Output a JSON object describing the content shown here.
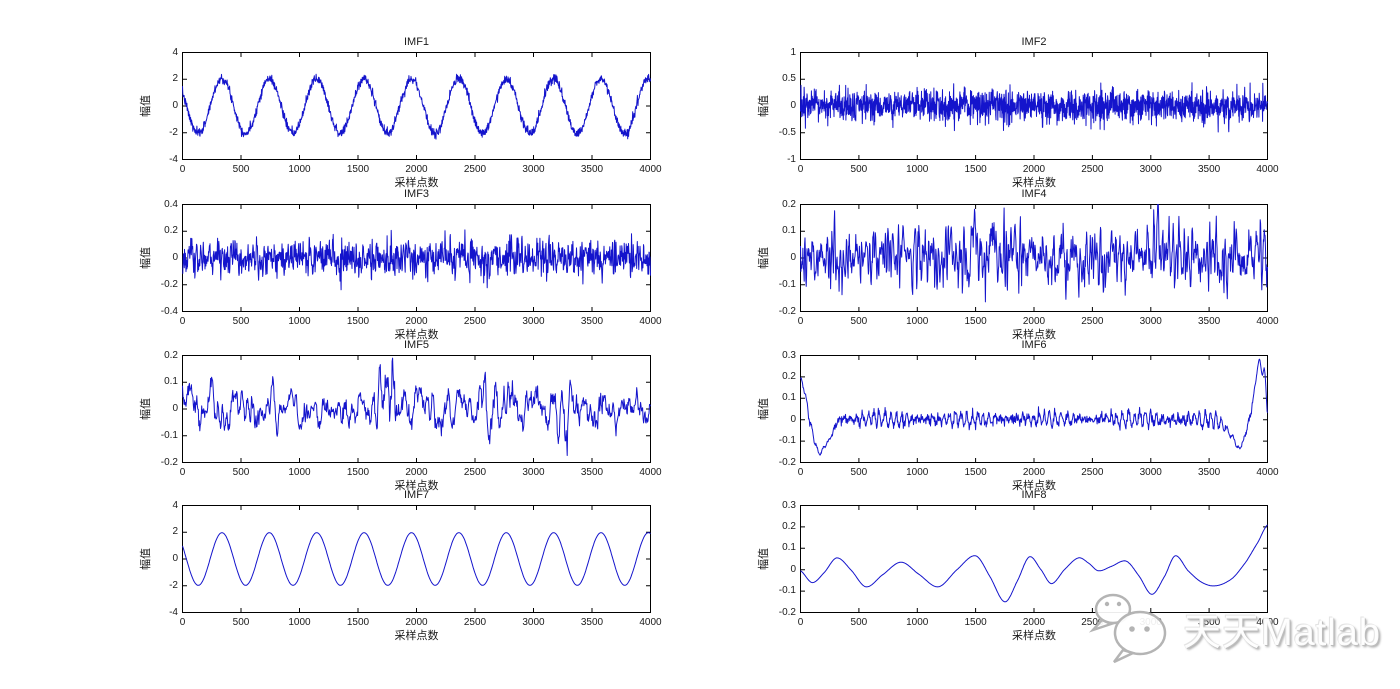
{
  "figure": {
    "background": "#ffffff",
    "trace_color": "#1414cc",
    "axis_color": "#000000",
    "text_color": "#1a1a1a"
  },
  "axes_common": {
    "xlabel": "采样点数",
    "ylabel": "幅值",
    "xlim": [
      0,
      4000
    ],
    "xticks": [
      0,
      500,
      1000,
      1500,
      2000,
      2500,
      3000,
      3500,
      4000
    ],
    "xtick_labels": [
      "0",
      "500",
      "1000",
      "1500",
      "2000",
      "2500",
      "3000",
      "3500",
      "4000"
    ],
    "grid": false,
    "box": true
  },
  "chart_data": [
    {
      "id": "imf1",
      "type": "line",
      "title": "IMF1",
      "xlabel": "采样点数",
      "ylabel": "幅值",
      "xlim": [
        0,
        4000
      ],
      "ylim": [
        -4,
        4
      ],
      "yticks": [
        -4,
        -2,
        0,
        2,
        4
      ],
      "ytick_labels": [
        "-4",
        "-2",
        "0",
        "2",
        "4"
      ],
      "signal": {
        "kind": "noisy_sine",
        "amplitude": 2.05,
        "period": 405,
        "phase_offset": 169,
        "noise_sd": 0.17,
        "points": 1500,
        "seed": 7
      }
    },
    {
      "id": "imf2",
      "type": "line",
      "title": "IMF2",
      "xlabel": "采样点数",
      "ylabel": "幅值",
      "xlim": [
        0,
        4000
      ],
      "ylim": [
        -1,
        1
      ],
      "yticks": [
        -1,
        -0.5,
        0,
        0.5,
        1
      ],
      "ytick_labels": [
        "-1",
        "-0.5",
        "0",
        "0.5",
        "1"
      ],
      "signal": {
        "kind": "noise",
        "sd": 0.15,
        "smooth": 1,
        "points": 1800,
        "seed": 13
      }
    },
    {
      "id": "imf3",
      "type": "line",
      "title": "IMF3",
      "xlabel": "采样点数",
      "ylabel": "幅值",
      "xlim": [
        0,
        4000
      ],
      "ylim": [
        -0.4,
        0.4
      ],
      "yticks": [
        -0.4,
        -0.2,
        0,
        0.2,
        0.4
      ],
      "ytick_labels": [
        "-0.4",
        "-0.2",
        "0",
        "0.2",
        "0.4"
      ],
      "signal": {
        "kind": "noise",
        "sd": 0.068,
        "smooth": 2,
        "points": 1600,
        "seed": 21
      }
    },
    {
      "id": "imf4",
      "type": "line",
      "title": "IMF4",
      "xlabel": "采样点数",
      "ylabel": "幅值",
      "xlim": [
        0,
        4000
      ],
      "ylim": [
        -0.2,
        0.2
      ],
      "yticks": [
        -0.2,
        -0.1,
        0,
        0.1,
        0.2
      ],
      "ytick_labels": [
        "-0.2",
        "-0.1",
        "0",
        "0.1",
        "0.2"
      ],
      "signal": {
        "kind": "noise",
        "sd": 0.058,
        "smooth": 3,
        "points": 1150,
        "seed": 34
      }
    },
    {
      "id": "imf5",
      "type": "line",
      "title": "IMF5",
      "xlabel": "采样点数",
      "ylabel": "幅值",
      "xlim": [
        0,
        4000
      ],
      "ylim": [
        -0.2,
        0.2
      ],
      "yticks": [
        -0.2,
        -0.1,
        0,
        0.1,
        0.2
      ],
      "ytick_labels": [
        "-0.2",
        "-0.1",
        "0",
        "0.1",
        "0.2"
      ],
      "signal": {
        "kind": "noise",
        "sd": 0.04,
        "smooth": 6,
        "points": 950,
        "seed": 55,
        "bursts": [
          {
            "center": 1760,
            "width": 90,
            "gain": 1.9
          },
          {
            "center": 2700,
            "width": 150,
            "gain": 0.7
          },
          {
            "center": 3250,
            "width": 120,
            "gain": 0.6
          }
        ]
      }
    },
    {
      "id": "imf6",
      "type": "line",
      "title": "IMF6",
      "xlabel": "采样点数",
      "ylabel": "幅值",
      "xlim": [
        0,
        4000
      ],
      "ylim": [
        -0.2,
        0.3
      ],
      "yticks": [
        -0.2,
        -0.1,
        0,
        0.1,
        0.2,
        0.3
      ],
      "ytick_labels": [
        "-0.2",
        "-0.1",
        "0",
        "0.1",
        "0.2",
        "0.3"
      ],
      "signal": {
        "kind": "osc_noise_edges",
        "osc_amp": 0.03,
        "osc_period": 47,
        "noise_sd": 0.012,
        "points": 1100,
        "seed": 89,
        "edges": [
          [
            0,
            0.19
          ],
          [
            40,
            0.12
          ],
          [
            80,
            0.0
          ],
          [
            120,
            -0.1
          ],
          [
            160,
            -0.155
          ],
          [
            200,
            -0.13
          ],
          [
            250,
            -0.09
          ],
          [
            300,
            -0.03
          ],
          [
            340,
            0
          ],
          [
            3560,
            0
          ],
          [
            3620,
            -0.03
          ],
          [
            3700,
            -0.08
          ],
          [
            3760,
            -0.135
          ],
          [
            3820,
            -0.05
          ],
          [
            3860,
            0.04
          ],
          [
            3900,
            0.18
          ],
          [
            3930,
            0.28
          ],
          [
            3955,
            0.21
          ],
          [
            3975,
            0.23
          ],
          [
            4000,
            0.03
          ]
        ]
      }
    },
    {
      "id": "imf7",
      "type": "line",
      "title": "IMF7",
      "xlabel": "采样点数",
      "ylabel": "幅值",
      "xlim": [
        0,
        4000
      ],
      "ylim": [
        -4,
        4
      ],
      "yticks": [
        -4,
        -2,
        0,
        2,
        4
      ],
      "ytick_labels": [
        "-4",
        "-2",
        "0",
        "2",
        "4"
      ],
      "signal": {
        "kind": "sine",
        "amplitude": 1.97,
        "period": 405,
        "phase_offset": 169,
        "points": 600,
        "seed": 1
      }
    },
    {
      "id": "imf8",
      "type": "line",
      "title": "IMF8",
      "xlabel": "采样点数",
      "ylabel": "幅值",
      "xlim": [
        0,
        4000
      ],
      "ylim": [
        -0.2,
        0.3
      ],
      "yticks": [
        -0.2,
        -0.1,
        0,
        0.1,
        0.2,
        0.3
      ],
      "ytick_labels": [
        "-0.2",
        "-0.1",
        "0",
        "0.1",
        "0.2",
        "0.3"
      ],
      "signal": {
        "kind": "keypoints",
        "points": 700,
        "seed": 2,
        "keypoints": [
          [
            0,
            -0.005
          ],
          [
            100,
            -0.06
          ],
          [
            200,
            -0.015
          ],
          [
            310,
            0.055
          ],
          [
            430,
            0.0
          ],
          [
            560,
            -0.08
          ],
          [
            700,
            -0.025
          ],
          [
            860,
            0.035
          ],
          [
            1010,
            -0.02
          ],
          [
            1180,
            -0.08
          ],
          [
            1340,
            0.0
          ],
          [
            1500,
            0.065
          ],
          [
            1620,
            -0.03
          ],
          [
            1750,
            -0.15
          ],
          [
            1860,
            -0.05
          ],
          [
            1960,
            0.06
          ],
          [
            2060,
            0.0
          ],
          [
            2150,
            -0.065
          ],
          [
            2260,
            0.0
          ],
          [
            2380,
            0.055
          ],
          [
            2470,
            0.03
          ],
          [
            2550,
            -0.005
          ],
          [
            2660,
            0.015
          ],
          [
            2790,
            0.04
          ],
          [
            2900,
            -0.03
          ],
          [
            3010,
            -0.115
          ],
          [
            3120,
            -0.03
          ],
          [
            3210,
            0.065
          ],
          [
            3320,
            -0.005
          ],
          [
            3440,
            -0.06
          ],
          [
            3560,
            -0.075
          ],
          [
            3700,
            -0.04
          ],
          [
            3820,
            0.04
          ],
          [
            3920,
            0.13
          ],
          [
            4000,
            0.21
          ]
        ]
      }
    }
  ],
  "watermark": {
    "text": "天天Matlab",
    "icon": "wechat-bubbles-icon",
    "outline_color": "#b4b4b4",
    "fill_color": "#fcfcfc"
  }
}
